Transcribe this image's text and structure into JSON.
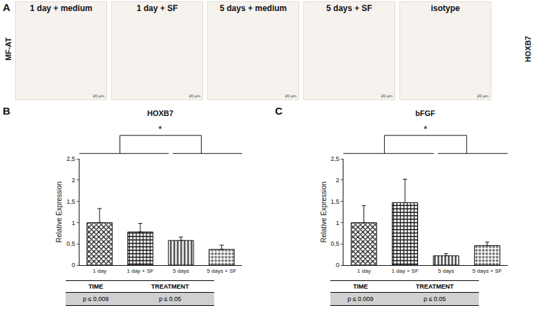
{
  "figure": {
    "panel_a": {
      "label": "A",
      "row_label": "MF-AT",
      "stain_label": "HOXB7",
      "scale_bar": "20 µm",
      "images": [
        "1 day + medium",
        "1 day + SF",
        "5 days + medium",
        "5 days + SF",
        "isotype"
      ]
    }
  },
  "chart_data": [
    {
      "panel": "B",
      "type": "bar",
      "title": "HOXB7",
      "y_label": "Relative Expression",
      "categories": [
        "1 day",
        "1 day + SF",
        "5 days",
        "5 days + SF"
      ],
      "values": [
        1.0,
        0.78,
        0.58,
        0.37
      ],
      "errors": [
        0.33,
        0.2,
        0.08,
        0.1
      ],
      "colors": [
        "#111111",
        "#111111",
        "#333333",
        "#777777"
      ],
      "ylim": [
        0,
        2.5
      ],
      "yticks": [
        0,
        {
          "value": 0.5,
          "label": "0,5"
        },
        1,
        {
          "value": 1.5,
          "label": "1,5"
        },
        2,
        {
          "value": 2.5,
          "label": "2,5"
        }
      ],
      "grid": false,
      "significance": "*",
      "table": {
        "header": [
          "TIME",
          "TREATMENT"
        ],
        "rows": [
          [
            "p ≤ 0.009",
            "p ≤ 0.05"
          ]
        ]
      }
    },
    {
      "panel": "C",
      "type": "bar",
      "title": "bFGF",
      "y_label": "Relative Expression",
      "categories": [
        "1 day",
        "1 day + SF",
        "5 days",
        "5 days + SF"
      ],
      "values": [
        1.0,
        1.47,
        0.22,
        0.46
      ],
      "errors": [
        0.4,
        0.55,
        0.05,
        0.08
      ],
      "colors": [
        "#111111",
        "#111111",
        "#333333",
        "#777777"
      ],
      "ylim": [
        0,
        2.5
      ],
      "yticks": [
        0,
        {
          "value": 0.5,
          "label": "0,5"
        },
        1,
        {
          "value": 1.5,
          "label": "1,5"
        },
        2,
        {
          "value": 2.5,
          "label": "2,5"
        }
      ],
      "grid": false,
      "significance": "*",
      "table": {
        "header": [
          "TIME",
          "TREATMENT"
        ],
        "rows": [
          [
            "p ≤ 0.009",
            "p ≤ 0.05"
          ]
        ]
      }
    }
  ]
}
